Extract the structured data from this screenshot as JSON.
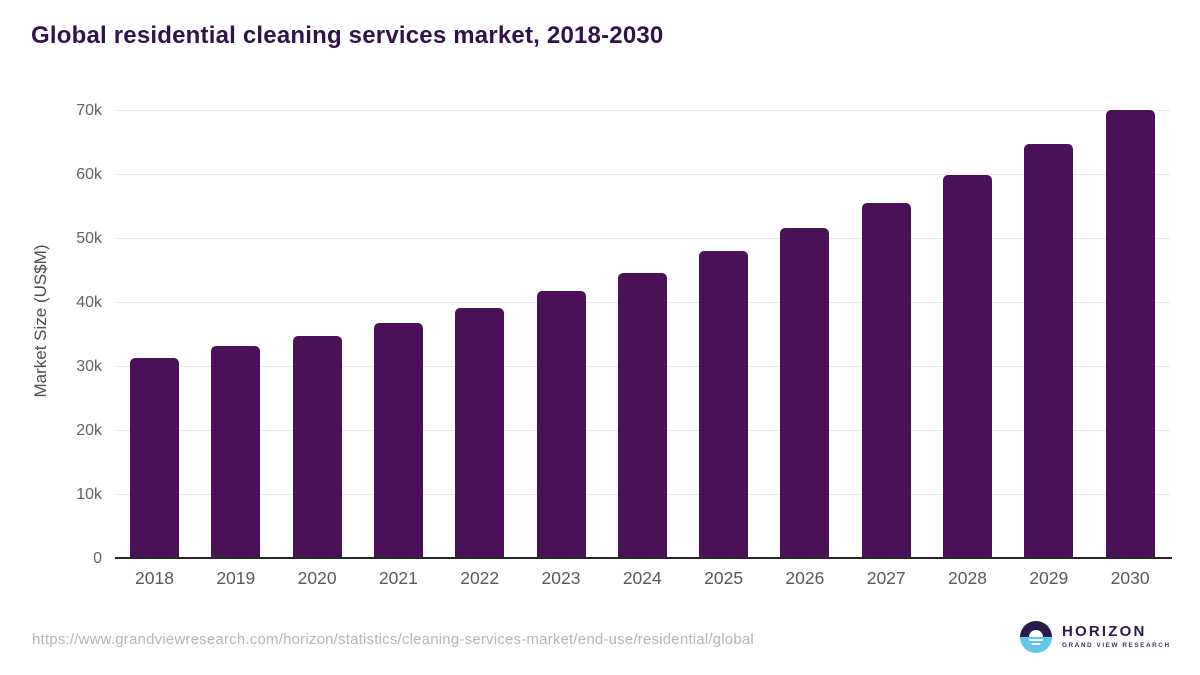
{
  "header": {
    "title": "Global residential cleaning services market, 2018-2030",
    "title_color": "#31124a"
  },
  "chart_data": {
    "type": "bar",
    "categories": [
      "2018",
      "2019",
      "2020",
      "2021",
      "2022",
      "2023",
      "2024",
      "2025",
      "2026",
      "2027",
      "2028",
      "2029",
      "2030"
    ],
    "values": [
      31000,
      33000,
      34500,
      36600,
      38900,
      41500,
      44400,
      47800,
      51300,
      55200,
      59600,
      64400,
      69800
    ],
    "title": "Global residential cleaning services market, 2018-2030",
    "xlabel": "",
    "ylabel": "Market Size (US$M)",
    "ylim": [
      0,
      70000
    ],
    "ytick_values": [
      0,
      10000,
      20000,
      30000,
      40000,
      50000,
      60000,
      70000
    ],
    "ytick_labels": [
      "0",
      "10k",
      "20k",
      "30k",
      "40k",
      "50k",
      "60k",
      "70k"
    ],
    "grid": "horizontal",
    "legend": "none",
    "bar_color": "#4a1158"
  },
  "footer": {
    "source_url": "https://www.grandviewresearch.com/horizon/statistics/cleaning-services-market/end-use/residential/global",
    "logo": {
      "brand": "HORIZON",
      "subtitle": "GRAND VIEW RESEARCH",
      "brand_color": "#2e1a47",
      "subtitle_color": "#41306b",
      "mark_top_color": "#2b1b49",
      "mark_bottom_color": "#62c6ea"
    }
  }
}
